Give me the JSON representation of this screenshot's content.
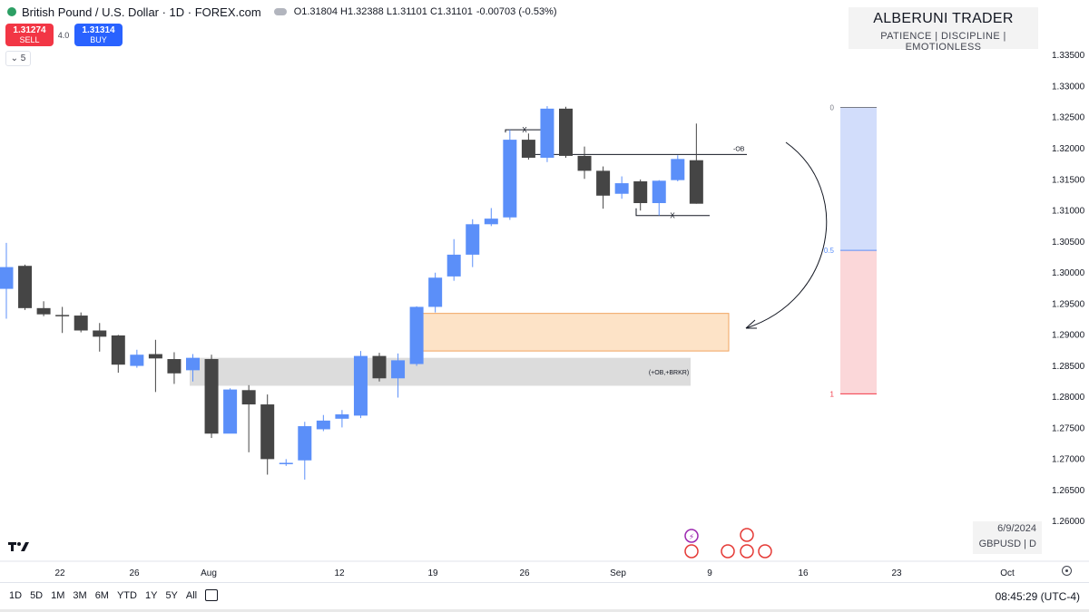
{
  "header": {
    "symbol": "British Pound / U.S. Dollar · 1D · FOREX.com",
    "ohlc": "O1.31804 H1.32388 L1.31101 C1.31101",
    "change": "-0.00703 (-0.53%)"
  },
  "trade": {
    "sell_price": "1.31274",
    "sell_label": "SELL",
    "spread": "4.0",
    "buy_price": "1.31314",
    "buy_label": "BUY"
  },
  "indicator_toggle": "5",
  "watermark": {
    "title": "ALBERUNI TRADER",
    "subtitle": "PATIENCE  |  DISCIPLINE  |  EMOTIONLESS"
  },
  "info": {
    "date": "6/9/2024",
    "symbol_tf": "GBPUSD | D"
  },
  "bottom": {
    "ranges": [
      "1D",
      "5D",
      "1M",
      "3M",
      "6M",
      "YTD",
      "1Y",
      "5Y",
      "All"
    ],
    "clock": "08:45:29 (UTC-4)"
  },
  "colors": {
    "up": "#5b8ff9",
    "down": "#454545",
    "ob_fill": "#fde3c7",
    "ob_border": "#f0a460",
    "brkr_fill": "#dcdcdc",
    "fib_top": "#d2ddfb",
    "fib_bottom": "#fbd7d9"
  },
  "chart_data": {
    "type": "candlestick",
    "y_range": [
      1.2558,
      1.3397
    ],
    "y_ticks": [
      "1.33500",
      "1.33000",
      "1.32500",
      "1.32000",
      "1.31500",
      "1.31000",
      "1.30500",
      "1.30000",
      "1.29500",
      "1.29000",
      "1.28500",
      "1.28000",
      "1.27500",
      "1.27000",
      "1.26500",
      "1.26000"
    ],
    "x_labels": [
      "22",
      "26",
      "Aug",
      "12",
      "19",
      "26",
      "Sep",
      "9",
      "16",
      "23",
      "Oct"
    ],
    "candles": [
      {
        "o": 1.2973,
        "h": 1.3047,
        "l": 1.2925,
        "c": 1.3008
      },
      {
        "o": 1.301,
        "h": 1.3012,
        "l": 1.2939,
        "c": 1.2942
      },
      {
        "o": 1.2942,
        "h": 1.2953,
        "l": 1.2929,
        "c": 1.2932
      },
      {
        "o": 1.2931,
        "h": 1.2944,
        "l": 1.2902,
        "c": 1.293
      },
      {
        "o": 1.293,
        "h": 1.2935,
        "l": 1.2903,
        "c": 1.2906
      },
      {
        "o": 1.2906,
        "h": 1.2918,
        "l": 1.2872,
        "c": 1.2896
      },
      {
        "o": 1.2898,
        "h": 1.2899,
        "l": 1.2838,
        "c": 1.2851
      },
      {
        "o": 1.2849,
        "h": 1.2875,
        "l": 1.2846,
        "c": 1.2867
      },
      {
        "o": 1.2868,
        "h": 1.2891,
        "l": 1.2807,
        "c": 1.2861
      },
      {
        "o": 1.286,
        "h": 1.2871,
        "l": 1.282,
        "c": 1.2837
      },
      {
        "o": 1.2842,
        "h": 1.2868,
        "l": 1.2824,
        "c": 1.2862
      },
      {
        "o": 1.286,
        "h": 1.2867,
        "l": 1.2733,
        "c": 1.274
      },
      {
        "o": 1.274,
        "h": 1.2813,
        "l": 1.2742,
        "c": 1.2811
      },
      {
        "o": 1.281,
        "h": 1.2818,
        "l": 1.271,
        "c": 1.2787
      },
      {
        "o": 1.2787,
        "h": 1.2803,
        "l": 1.2674,
        "c": 1.2699
      },
      {
        "o": 1.2692,
        "h": 1.2699,
        "l": 1.2688,
        "c": 1.2693
      },
      {
        "o": 1.2697,
        "h": 1.2759,
        "l": 1.2666,
        "c": 1.2752
      },
      {
        "o": 1.2747,
        "h": 1.277,
        "l": 1.2744,
        "c": 1.2761
      },
      {
        "o": 1.2764,
        "h": 1.2778,
        "l": 1.275,
        "c": 1.2771
      },
      {
        "o": 1.2769,
        "h": 1.2873,
        "l": 1.2765,
        "c": 1.2865
      },
      {
        "o": 1.2865,
        "h": 1.287,
        "l": 1.2824,
        "c": 1.2829
      },
      {
        "o": 1.2829,
        "h": 1.2869,
        "l": 1.2798,
        "c": 1.2858
      },
      {
        "o": 1.2852,
        "h": 1.2945,
        "l": 1.2849,
        "c": 1.2944
      },
      {
        "o": 1.2944,
        "h": 1.2999,
        "l": 1.2935,
        "c": 1.2991
      },
      {
        "o": 1.2993,
        "h": 1.3053,
        "l": 1.2986,
        "c": 1.3028
      },
      {
        "o": 1.3028,
        "h": 1.3085,
        "l": 1.3008,
        "c": 1.3077
      },
      {
        "o": 1.3077,
        "h": 1.3103,
        "l": 1.3074,
        "c": 1.3086
      },
      {
        "o": 1.3088,
        "h": 1.3229,
        "l": 1.3084,
        "c": 1.3213
      },
      {
        "o": 1.3213,
        "h": 1.3223,
        "l": 1.3181,
        "c": 1.3184
      },
      {
        "o": 1.3184,
        "h": 1.3267,
        "l": 1.3177,
        "c": 1.3263
      },
      {
        "o": 1.3263,
        "h": 1.3266,
        "l": 1.3184,
        "c": 1.3187
      },
      {
        "o": 1.3187,
        "h": 1.3202,
        "l": 1.315,
        "c": 1.3163
      },
      {
        "o": 1.3163,
        "h": 1.317,
        "l": 1.3102,
        "c": 1.3123
      },
      {
        "o": 1.3126,
        "h": 1.3154,
        "l": 1.3118,
        "c": 1.3143
      },
      {
        "o": 1.3146,
        "h": 1.3149,
        "l": 1.3099,
        "c": 1.3111
      },
      {
        "o": 1.3111,
        "h": 1.3148,
        "l": 1.3091,
        "c": 1.3147
      },
      {
        "o": 1.3148,
        "h": 1.3188,
        "l": 1.3146,
        "c": 1.3182
      },
      {
        "o": 1.318,
        "h": 1.3239,
        "l": 1.311,
        "c": 1.311
      }
    ],
    "zones": [
      {
        "label": "",
        "top": 1.29335,
        "bottom": 1.2873
      },
      {
        "label": "(+OB,+BRKR)",
        "top": 1.2862,
        "bottom": 1.2817
      }
    ],
    "lines": [
      {
        "label": "-OB",
        "y": 1.31893
      },
      {
        "label": "X",
        "y": 1.3229
      },
      {
        "label": "X",
        "y": 1.3091
      }
    ],
    "fib": [
      {
        "label": "0",
        "y": 1.3265
      },
      {
        "label": "0.5",
        "y": 1.3035
      },
      {
        "label": "1",
        "y": 1.2804
      }
    ]
  }
}
